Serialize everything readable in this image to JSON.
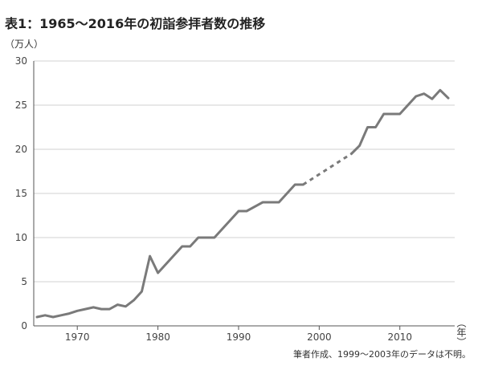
{
  "title": "表1：1965～2016年の初詣参拝者数の推移",
  "y_unit": "（万人）",
  "x_unit": "（年）",
  "note": "筆者作成、1999～2003年のデータは不明。",
  "colors": {
    "line": "#7a7a7a",
    "grid": "#d0d0d0",
    "axis": "#555555"
  },
  "chart_data": {
    "type": "line",
    "title": "表1：1965～2016年の初詣参拝者数の推移",
    "xlabel": "（年）",
    "ylabel": "（万人）",
    "xlim": [
      1964.6,
      2016.8
    ],
    "ylim": [
      0,
      30
    ],
    "grid": "horizontal",
    "x_ticks": [
      1970,
      1980,
      1990,
      2000,
      2010
    ],
    "y_ticks": [
      0,
      5,
      10,
      15,
      20,
      25,
      30
    ],
    "series": [
      {
        "values": [
          [
            1965,
            1.0
          ],
          [
            1966,
            1.2
          ],
          [
            1967,
            1.0
          ],
          [
            1968,
            1.2
          ],
          [
            1969,
            1.4
          ],
          [
            1970,
            1.7
          ],
          [
            1971,
            1.9
          ],
          [
            1972,
            2.1
          ],
          [
            1973,
            1.9
          ],
          [
            1974,
            1.9
          ],
          [
            1975,
            2.4
          ],
          [
            1976,
            2.2
          ],
          [
            1977,
            2.9
          ],
          [
            1978,
            3.9
          ],
          [
            1979,
            7.9
          ],
          [
            1980,
            6.0
          ],
          [
            1983,
            9.0
          ],
          [
            1984,
            9.0
          ],
          [
            1985,
            10.0
          ],
          [
            1987,
            10.0
          ],
          [
            1990,
            13.0
          ],
          [
            1991,
            13.0
          ],
          [
            1993,
            14.0
          ],
          [
            1995,
            14.0
          ],
          [
            1997,
            16.0
          ],
          [
            1998,
            16.0
          ]
        ],
        "style": "solid"
      },
      {
        "values": [
          [
            1998,
            16.0
          ],
          [
            2004,
            19.5
          ]
        ],
        "style": "dashed"
      },
      {
        "values": [
          [
            2004,
            19.5
          ],
          [
            2005,
            20.4
          ],
          [
            2006,
            22.5
          ],
          [
            2007,
            22.5
          ],
          [
            2008,
            24.0
          ],
          [
            2010,
            24.0
          ],
          [
            2012,
            26.0
          ],
          [
            2013,
            26.3
          ],
          [
            2014,
            25.7
          ],
          [
            2015,
            26.7
          ],
          [
            2016,
            25.8
          ]
        ],
        "style": "solid"
      }
    ]
  }
}
